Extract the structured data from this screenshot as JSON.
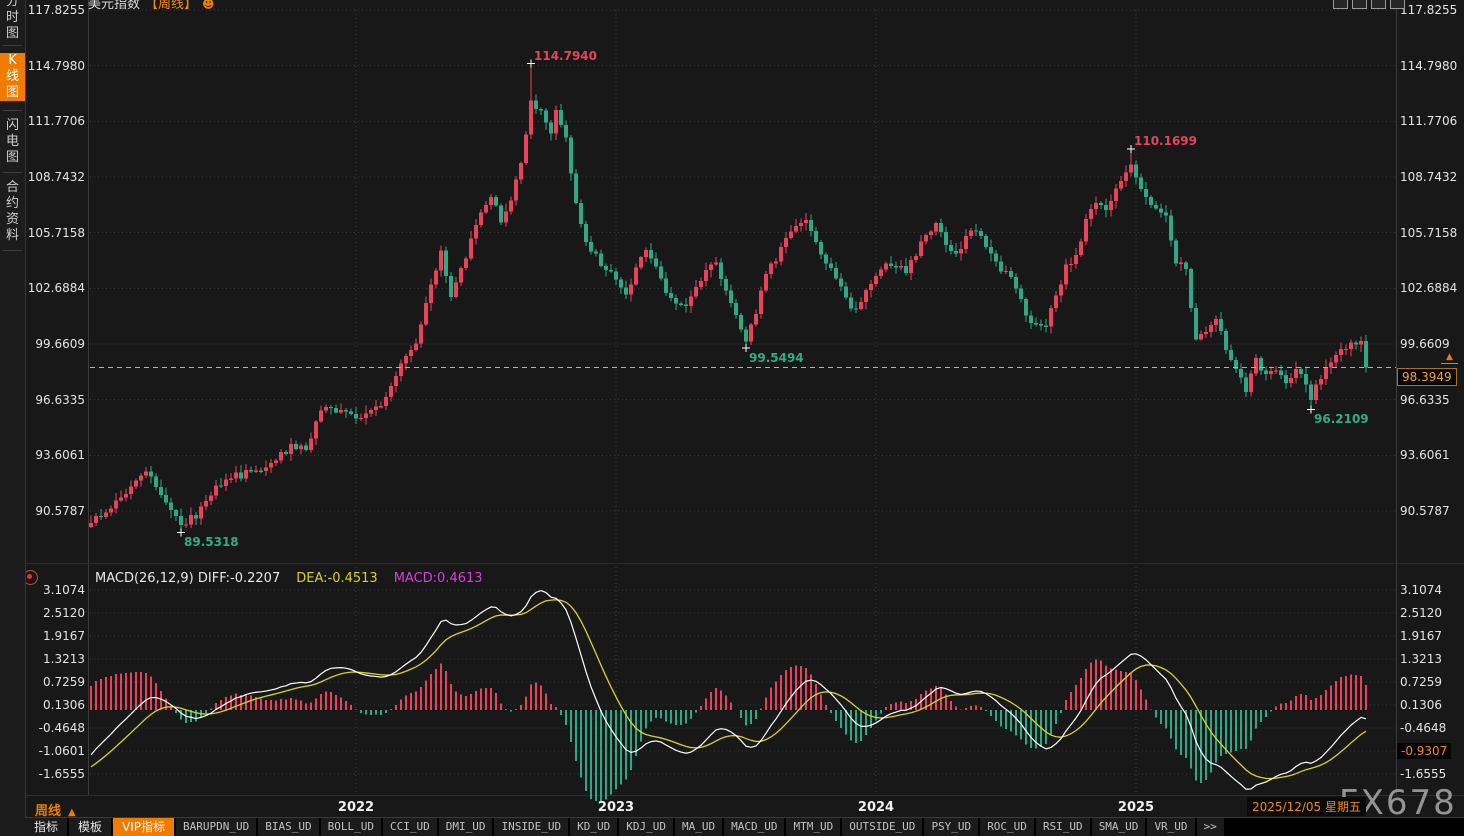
{
  "header": {
    "symbol": "美元指数",
    "period_tag": "【周线】"
  },
  "icons": {
    "title_icon": "smiley-icon",
    "macd_panel_icon": "target-icon",
    "window_icons": "window-mini-icons",
    "price_marker": "up-arrow-icon",
    "period_triangle": "up-triangle-icon"
  },
  "sidebar": {
    "items": [
      {
        "label": "分时图",
        "selected": false
      },
      {
        "label": "K线图",
        "selected": true
      },
      {
        "label": "闪电图",
        "selected": false
      },
      {
        "label": "合约资料",
        "selected": false
      }
    ]
  },
  "bottom": {
    "period_label": "周线",
    "date_label": "2025/12/05 星期五",
    "watermark": "FX678"
  },
  "toolbar": {
    "tabs": [
      {
        "label": "指标",
        "selected": false
      },
      {
        "label": "模板",
        "selected": false
      },
      {
        "label": "VIP指标",
        "selected": true
      }
    ],
    "indicators": [
      "BARUPDN_UD",
      "BIAS_UD",
      "BOLL_UD",
      "CCI_UD",
      "DMI_UD",
      "INSIDE_UD",
      "KD_UD",
      "KDJ_UD",
      "MA_UD",
      "MACD_UD",
      "MTM_UD",
      "OUTSIDE_UD",
      "PSY_UD",
      "ROC_UD",
      "RSI_UD",
      "SMA_UD",
      "VR_UD"
    ],
    "more_label": ">>"
  },
  "colors": {
    "up": "#e8435a",
    "down": "#2fa886",
    "accent": "#ef7c00",
    "price_dash_line": "#f0a050",
    "diff_line": "#ffffff",
    "dea_line": "#d4d42a",
    "macd_value_text": "#d83fd8",
    "axis_text": "#e4e4e4",
    "annotation_high": "#e8435a",
    "annotation_low": "#2fae86"
  },
  "chart_data": {
    "type": "candlestick_with_macd",
    "symbol": "美元指数",
    "period": "周线",
    "weeks": 256,
    "price_axis": [
      "117.8255",
      "114.7980",
      "111.7706",
      "108.7432",
      "105.7158",
      "102.6884",
      "99.6609",
      "96.6335",
      "93.6061",
      "90.5787"
    ],
    "macd_axis": [
      "3.1074",
      "2.5120",
      "1.9167",
      "1.3213",
      "0.7259",
      "0.1306",
      "-0.4648",
      "-1.0601",
      "-1.6555"
    ],
    "macd_axis_replaced": "-1.0601",
    "years": [
      {
        "label": "2022",
        "week": 53
      },
      {
        "label": "2023",
        "week": 105
      },
      {
        "label": "2024",
        "week": 157
      },
      {
        "label": "2025",
        "week": 209
      }
    ],
    "anchors": [
      [
        0,
        89.9
      ],
      [
        4,
        90.8
      ],
      [
        8,
        91.9
      ],
      [
        11,
        92.8
      ],
      [
        14,
        91.4
      ],
      [
        18,
        89.9
      ],
      [
        21,
        90.3
      ],
      [
        25,
        92.0
      ],
      [
        29,
        92.5
      ],
      [
        33,
        92.7
      ],
      [
        37,
        93.4
      ],
      [
        40,
        94.1
      ],
      [
        43,
        93.9
      ],
      [
        46,
        96.1
      ],
      [
        49,
        96.0
      ],
      [
        53,
        95.7
      ],
      [
        56,
        95.9
      ],
      [
        59,
        96.7
      ],
      [
        62,
        98.6
      ],
      [
        65,
        99.8
      ],
      [
        68,
        102.9
      ],
      [
        70,
        104.6
      ],
      [
        72,
        102.1
      ],
      [
        75,
        104.5
      ],
      [
        78,
        106.7
      ],
      [
        80,
        107.8
      ],
      [
        82,
        106.3
      ],
      [
        84,
        107.6
      ],
      [
        86,
        109.6
      ],
      [
        88,
        112.9
      ],
      [
        90,
        112.2
      ],
      [
        92,
        111.0
      ],
      [
        93,
        112.5
      ],
      [
        95,
        111.0
      ],
      [
        97,
        107.2
      ],
      [
        99,
        105.2
      ],
      [
        101,
        104.4
      ],
      [
        103,
        103.5
      ],
      [
        105,
        103.3
      ],
      [
        107,
        102.3
      ],
      [
        109,
        103.7
      ],
      [
        111,
        104.9
      ],
      [
        113,
        103.8
      ],
      [
        115,
        102.4
      ],
      [
        117,
        101.7
      ],
      [
        119,
        101.9
      ],
      [
        121,
        102.6
      ],
      [
        123,
        103.8
      ],
      [
        125,
        104.0
      ],
      [
        127,
        102.7
      ],
      [
        129,
        101.2
      ],
      [
        131,
        99.8
      ],
      [
        133,
        101.5
      ],
      [
        135,
        103.5
      ],
      [
        137,
        104.3
      ],
      [
        139,
        105.4
      ],
      [
        141,
        106.1
      ],
      [
        143,
        106.6
      ],
      [
        145,
        105.3
      ],
      [
        147,
        104.0
      ],
      [
        149,
        103.4
      ],
      [
        151,
        102.0
      ],
      [
        153,
        101.4
      ],
      [
        155,
        102.5
      ],
      [
        157,
        103.3
      ],
      [
        159,
        104.2
      ],
      [
        161,
        104.0
      ],
      [
        163,
        103.7
      ],
      [
        165,
        104.4
      ],
      [
        167,
        105.7
      ],
      [
        169,
        106.2
      ],
      [
        171,
        105.0
      ],
      [
        173,
        104.6
      ],
      [
        175,
        105.4
      ],
      [
        177,
        105.9
      ],
      [
        179,
        105.0
      ],
      [
        181,
        104.0
      ],
      [
        183,
        103.6
      ],
      [
        185,
        102.7
      ],
      [
        187,
        101.3
      ],
      [
        189,
        100.6
      ],
      [
        191,
        100.8
      ],
      [
        193,
        102.2
      ],
      [
        195,
        103.8
      ],
      [
        197,
        104.4
      ],
      [
        199,
        106.4
      ],
      [
        201,
        107.4
      ],
      [
        203,
        106.9
      ],
      [
        205,
        108.3
      ],
      [
        207,
        109.1
      ],
      [
        208,
        109.6
      ],
      [
        209,
        108.6
      ],
      [
        211,
        107.7
      ],
      [
        213,
        107.1
      ],
      [
        215,
        106.5
      ],
      [
        217,
        104.2
      ],
      [
        219,
        103.6
      ],
      [
        221,
        99.9
      ],
      [
        223,
        100.3
      ],
      [
        225,
        101.2
      ],
      [
        227,
        99.4
      ],
      [
        229,
        98.3
      ],
      [
        231,
        97.2
      ],
      [
        233,
        98.8
      ],
      [
        235,
        98.0
      ],
      [
        237,
        98.3
      ],
      [
        239,
        97.6
      ],
      [
        241,
        98.2
      ],
      [
        243,
        97.5
      ],
      [
        244,
        96.8
      ],
      [
        246,
        97.8
      ],
      [
        248,
        98.7
      ],
      [
        250,
        99.3
      ],
      [
        252,
        99.6
      ],
      [
        254,
        99.9
      ],
      [
        255,
        98.39
      ]
    ],
    "special_points": [
      {
        "week": 18,
        "kind": "low",
        "label": "89.5318"
      },
      {
        "week": 88,
        "kind": "high",
        "label": "114.7940"
      },
      {
        "week": 131,
        "kind": "low",
        "label": "99.5494"
      },
      {
        "week": 208,
        "kind": "high",
        "label": "110.1699"
      },
      {
        "week": 244,
        "kind": "low",
        "label": "96.2109"
      }
    ],
    "final_close": 98.3949,
    "current_price": "98.3949",
    "current_macd": "-0.9307",
    "macd_params": {
      "formula": "MACD(26,12,9)",
      "diff": "DIFF:-0.2207",
      "dea": "DEA:-0.4513",
      "macd": "MACD:0.4613"
    }
  }
}
